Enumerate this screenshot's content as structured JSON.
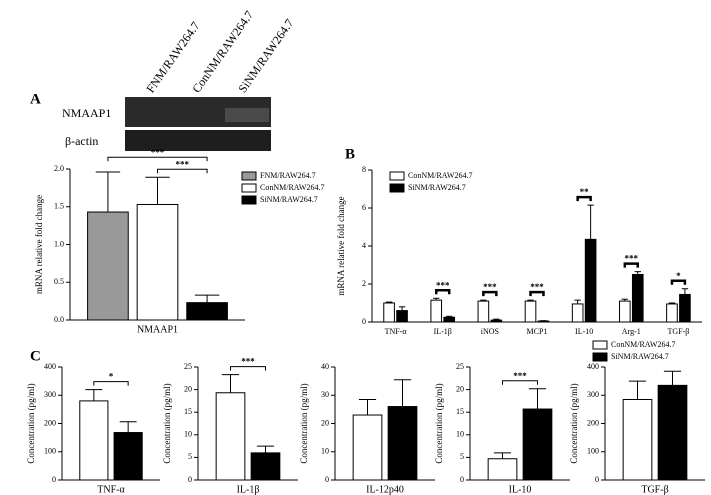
{
  "blot": {
    "panel": "A",
    "columns": [
      "FNM/RAW264.7",
      "ConNM/RAW264.7",
      "SiNM/RAW264.7"
    ],
    "rows": [
      "NMAAP1",
      "β-actin"
    ]
  },
  "chart_data": [
    {
      "type": "bar",
      "ylabel": "mRNA relative fold change",
      "categories": [
        "NMAAP1"
      ],
      "series": [
        {
          "name": "FNM/RAW264.7",
          "color": "#999999",
          "values": [
            1.43
          ],
          "errors": [
            0.53
          ]
        },
        {
          "name": "ConNM/RAW264.7",
          "color": "#ffffff",
          "values": [
            1.53
          ],
          "errors": [
            0.36
          ]
        },
        {
          "name": "SiNM/RAW264.7",
          "color": "#000000",
          "values": [
            0.23
          ],
          "errors": [
            0.1
          ]
        }
      ],
      "ylim": [
        0,
        2
      ],
      "yticks": [
        {
          "value": 0,
          "label": "0.0"
        },
        0.5,
        {
          "value": 1,
          "label": "1.0"
        },
        1.5,
        {
          "value": 2,
          "label": "2.0"
        }
      ],
      "significance": [
        {
          "text": "***",
          "category": 0,
          "series": [
            1,
            2
          ]
        },
        {
          "text": "***",
          "category": 0,
          "series": [
            0,
            2
          ]
        }
      ]
    },
    {
      "type": "bar",
      "panel": "B",
      "ylabel": "mRNA relative fold change",
      "categories": [
        "TNF-α",
        "IL-1β",
        "iNOS",
        "MCP1",
        "IL-10",
        "Arg-1",
        "TGF-β"
      ],
      "series": [
        {
          "name": "ConNM/RAW264.7",
          "color": "#ffffff",
          "values": [
            1.0,
            1.15,
            1.1,
            1.1,
            0.95,
            1.1,
            0.95
          ],
          "errors": [
            0.05,
            0.1,
            0.05,
            0.05,
            0.2,
            0.1,
            0.05
          ]
        },
        {
          "name": "SiNM/RAW264.7",
          "color": "#000000",
          "values": [
            0.6,
            0.25,
            0.1,
            0.05,
            4.35,
            2.5,
            1.45
          ],
          "errors": [
            0.2,
            0.05,
            0.05,
            0.02,
            1.8,
            0.15,
            0.3
          ]
        }
      ],
      "ylim": [
        0,
        8
      ],
      "yticks": [
        0,
        2,
        4,
        6,
        8
      ],
      "significance": [
        {
          "text": "***",
          "category": 1,
          "series": [
            0,
            1
          ]
        },
        {
          "text": "***",
          "category": 2,
          "series": [
            0,
            1
          ]
        },
        {
          "text": "***",
          "category": 3,
          "series": [
            0,
            1
          ]
        },
        {
          "text": "**",
          "category": 4,
          "series": [
            0,
            1
          ]
        },
        {
          "text": "***",
          "category": 5,
          "series": [
            0,
            1
          ]
        },
        {
          "text": "*",
          "category": 6,
          "series": [
            0,
            1
          ]
        }
      ]
    },
    {
      "type": "bar",
      "panel": "C",
      "ylabel": "Concentration (pg/ml)",
      "categories": [
        "TNF-α"
      ],
      "series": [
        {
          "name": "ConNM/RAW264.7",
          "color": "#ffffff",
          "values": [
            280
          ],
          "errors": [
            40
          ]
        },
        {
          "name": "SiNM/RAW264.7",
          "color": "#000000",
          "values": [
            168
          ],
          "errors": [
            38
          ]
        }
      ],
      "ylim": [
        0,
        400
      ],
      "yticks": [
        0,
        100,
        200,
        300,
        400
      ],
      "significance": [
        {
          "text": "*",
          "category": 0,
          "series": [
            0,
            1
          ]
        }
      ]
    },
    {
      "type": "bar",
      "ylabel": "Concentration (pg/ml)",
      "categories": [
        "IL-1β"
      ],
      "series": [
        {
          "name": "ConNM/RAW264.7",
          "color": "#ffffff",
          "values": [
            19.3
          ],
          "errors": [
            4
          ]
        },
        {
          "name": "SiNM/RAW264.7",
          "color": "#000000",
          "values": [
            6
          ],
          "errors": [
            1.5
          ]
        }
      ],
      "ylim": [
        0,
        25
      ],
      "yticks": [
        0,
        5,
        10,
        15,
        20,
        25
      ],
      "significance": [
        {
          "text": "***",
          "category": 0,
          "series": [
            0,
            1
          ]
        }
      ]
    },
    {
      "type": "bar",
      "ylabel": "Concentration (pg/ml)",
      "categories": [
        "IL-12p40"
      ],
      "series": [
        {
          "name": "ConNM/RAW264.7",
          "color": "#ffffff",
          "values": [
            23
          ],
          "errors": [
            5.5
          ]
        },
        {
          "name": "SiNM/RAW264.7",
          "color": "#000000",
          "values": [
            26
          ],
          "errors": [
            9.5
          ]
        }
      ],
      "ylim": [
        0,
        40
      ],
      "yticks": [
        0,
        10,
        20,
        30,
        40
      ],
      "significance": []
    },
    {
      "type": "bar",
      "ylabel": "Concentration (pg/ml)",
      "categories": [
        "IL-10"
      ],
      "series": [
        {
          "name": "ConNM/RAW264.7",
          "color": "#ffffff",
          "values": [
            4.7
          ],
          "errors": [
            1.3
          ]
        },
        {
          "name": "SiNM/RAW264.7",
          "color": "#000000",
          "values": [
            15.7
          ],
          "errors": [
            4.5
          ]
        }
      ],
      "ylim": [
        0,
        25
      ],
      "yticks": [
        0,
        5,
        10,
        15,
        20,
        25
      ],
      "significance": [
        {
          "text": "***",
          "category": 0,
          "series": [
            0,
            1
          ]
        }
      ]
    },
    {
      "type": "bar",
      "ylabel": "Concentration (pg/ml)",
      "categories": [
        "TGF-β"
      ],
      "series": [
        {
          "name": "ConNM/RAW264.7",
          "color": "#ffffff",
          "values": [
            285
          ],
          "errors": [
            65
          ]
        },
        {
          "name": "SiNM/RAW264.7",
          "color": "#000000",
          "values": [
            335
          ],
          "errors": [
            50
          ]
        }
      ],
      "ylim": [
        0,
        400
      ],
      "yticks": [
        0,
        100,
        200,
        300,
        400
      ],
      "significance": [],
      "legend": true
    }
  ]
}
